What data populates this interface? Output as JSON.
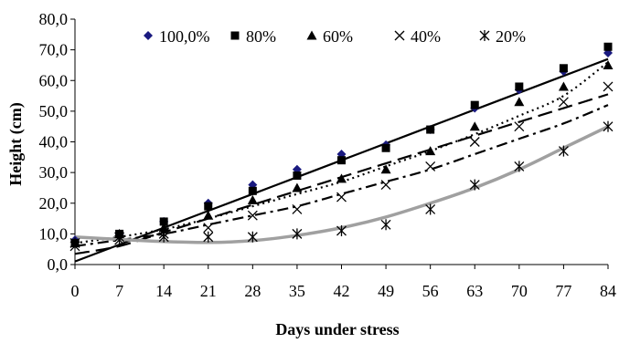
{
  "chart_data": {
    "type": "scatter",
    "title": "",
    "xlabel": "Days under stress",
    "ylabel": "Height (cm)",
    "xlim": [
      0,
      84
    ],
    "ylim": [
      0,
      80
    ],
    "x_ticks": [
      0,
      7,
      14,
      21,
      28,
      35,
      42,
      49,
      56,
      63,
      70,
      77,
      84
    ],
    "x_tick_labels": [
      "0",
      "7",
      "14",
      "21",
      "28",
      "35",
      "42",
      "49",
      "56",
      "63",
      "70",
      "77",
      "84"
    ],
    "y_ticks": [
      0,
      10,
      20,
      30,
      40,
      50,
      60,
      70,
      80
    ],
    "y_tick_labels": [
      "0,0",
      "10,0",
      "20,0",
      "30,0",
      "40,0",
      "50,0",
      "60,0",
      "70,0",
      "80,0"
    ],
    "grid": false,
    "legend_position": "top",
    "series": [
      {
        "name": "100,0%",
        "marker": "diamond",
        "color": "#1a1a80",
        "trend_style": "solid",
        "trend_color": "#000000",
        "values": [
          8,
          10,
          14,
          20,
          26,
          31,
          36,
          39,
          44,
          51,
          57,
          63,
          69
        ],
        "trend": [
          1,
          6.5,
          12,
          17.5,
          23,
          28.5,
          34,
          39.5,
          45,
          50.5,
          56,
          61.5,
          67
        ]
      },
      {
        "name": "80%",
        "marker": "square",
        "color": "#000000",
        "trend_style": "dotted",
        "trend_color": "#000000",
        "values": [
          7,
          10,
          14,
          19,
          24,
          29,
          34,
          38,
          44,
          52,
          58,
          64,
          71
        ],
        "trend": [
          7,
          9,
          11.5,
          15,
          19,
          23,
          27,
          32,
          37,
          42.5,
          48.5,
          55,
          66
        ]
      },
      {
        "name": "60%",
        "marker": "triangle",
        "color": "#000000",
        "trend_style": "long-dash",
        "trend_color": "#000000",
        "values": [
          7,
          10,
          12,
          16,
          21,
          25,
          28,
          31,
          37,
          45,
          53,
          58,
          65
        ],
        "trend": [
          3.5,
          6,
          10.5,
          15,
          19.5,
          24,
          28.5,
          33,
          37.5,
          42,
          46.5,
          51,
          55.5
        ]
      },
      {
        "name": "40%",
        "marker": "x",
        "color": "#000000",
        "trend_style": "dash-dot",
        "trend_color": "#000000",
        "values": [
          6,
          9,
          10,
          12,
          16,
          18,
          22,
          26,
          32,
          40,
          45,
          53,
          58
        ],
        "trend": [
          6,
          8,
          10,
          13,
          16,
          19,
          23,
          27,
          31,
          36,
          41,
          46,
          52
        ]
      },
      {
        "name": "20%",
        "marker": "asterisk",
        "color": "#000000",
        "trend_style": "solid",
        "trend_color": "#a0a0a0",
        "values": [
          7,
          8,
          9,
          9,
          9,
          10,
          11,
          13,
          18,
          26,
          32,
          37,
          45
        ],
        "trend": [
          9,
          8.2,
          7.5,
          7.2,
          7.8,
          9.5,
          12,
          15.5,
          20,
          25,
          31,
          38,
          45
        ]
      }
    ]
  }
}
